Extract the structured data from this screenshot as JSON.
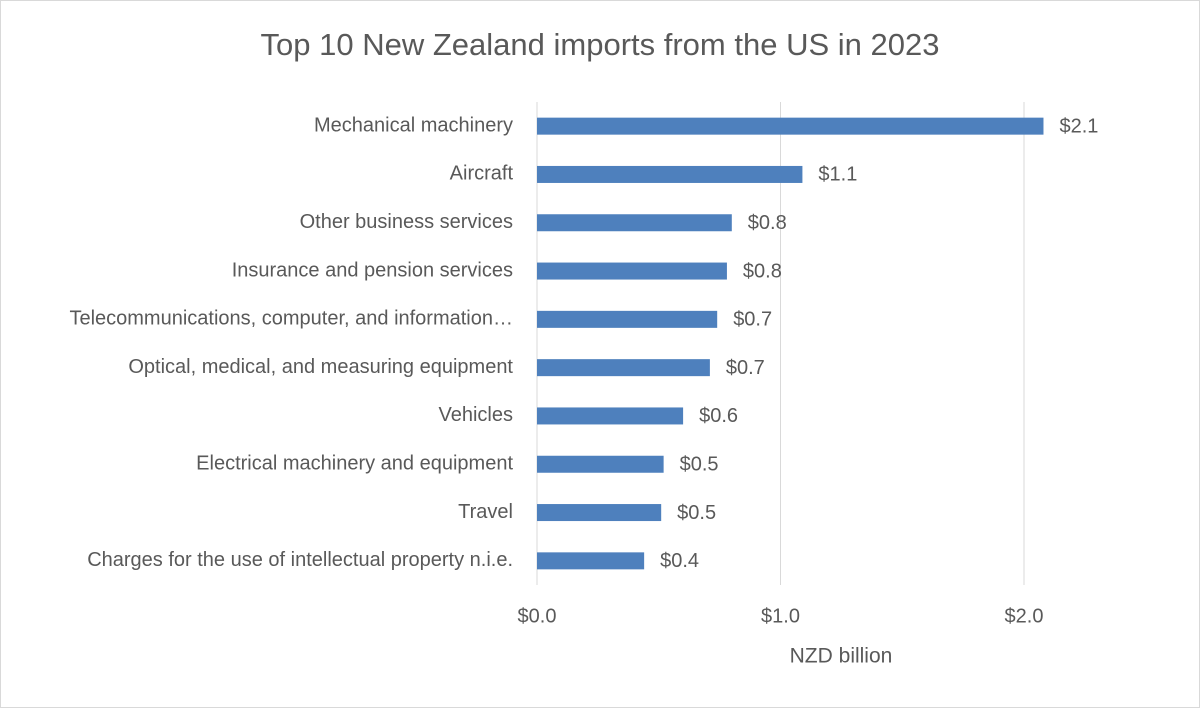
{
  "chart_data": {
    "type": "bar",
    "orientation": "horizontal",
    "title": "Top 10 New Zealand imports from the US in 2023",
    "x_label": "NZD billion",
    "categories": [
      "Mechanical machinery",
      "Aircraft",
      "Other business services",
      "Insurance and pension services",
      "Telecommunications, computer, and information…",
      "Optical, medical, and measuring equipment",
      "Vehicles",
      "Electrical machinery and equipment",
      "Travel",
      "Charges for the use of intellectual property n.i.e."
    ],
    "values": [
      2.08,
      1.09,
      0.8,
      0.78,
      0.74,
      0.71,
      0.6,
      0.52,
      0.51,
      0.44
    ],
    "value_labels": [
      "$2.1",
      "$1.1",
      "$0.8",
      "$0.8",
      "$0.7",
      "$0.7",
      "$0.6",
      "$0.5",
      "$0.5",
      "$0.4"
    ],
    "color": "#4e80bd",
    "xlim": [
      0,
      2.5
    ],
    "xticks": [
      {
        "value": 0,
        "label": "$0.0"
      },
      {
        "value": 1,
        "label": "$1.0"
      },
      {
        "value": 2,
        "label": "$2.0"
      }
    ],
    "grid": true
  }
}
